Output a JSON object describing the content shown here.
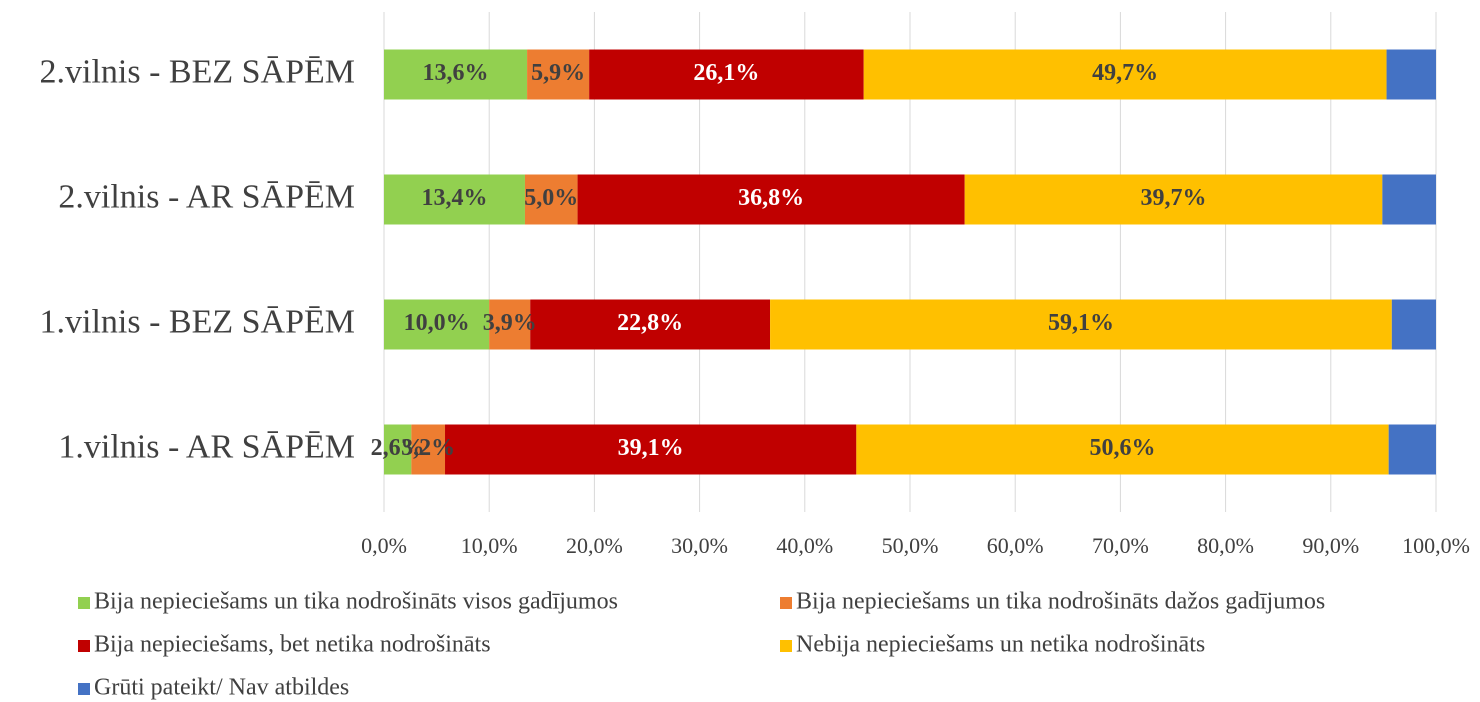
{
  "chart_data": {
    "type": "stacked-barh",
    "categories": [
      "2.vilnis - BEZ SĀPĒM",
      "2.vilnis - AR SĀPĒM",
      "1.vilnis - BEZ SĀPĒM",
      "1.vilnis - AR SĀPĒM"
    ],
    "series": [
      {
        "name": "Bija nepieciešams un tika nodrošināts visos gadījumos",
        "color": "#92d050",
        "values": [
          13.6,
          13.4,
          10.0,
          2.6
        ],
        "value_labels": [
          "13,6%",
          "13,4%",
          "10,0%",
          "2,6%"
        ]
      },
      {
        "name": "Bija nepieciešams un tika nodrošināts dažos gadījumos",
        "color": "#ed7d31",
        "values": [
          5.9,
          5.0,
          3.9,
          3.2
        ],
        "value_labels": [
          "5,9%",
          "5,0%",
          "3,9%",
          "3,2%"
        ]
      },
      {
        "name": "Bija nepieciešams, bet netika nodrošināts",
        "color": "#c00000",
        "values": [
          26.1,
          36.8,
          22.8,
          39.1
        ],
        "value_labels": [
          "26,1%",
          "36,8%",
          "22,8%",
          "39,1%"
        ]
      },
      {
        "name": "Nebija nepieciešams un netika nodrošināts",
        "color": "#ffc000",
        "values": [
          49.7,
          39.7,
          59.1,
          50.6
        ],
        "value_labels": [
          "49,7%",
          "39,7%",
          "59,1%",
          "50,6%"
        ]
      },
      {
        "name": "Grūti pateikt/ Nav atbildes",
        "color": "#4472c4",
        "values": [
          4.7,
          5.1,
          4.2,
          4.5
        ]
      }
    ],
    "xlim": [
      0,
      100
    ],
    "xticks": [
      {
        "value": 0,
        "label": "0,0%"
      },
      {
        "value": 10,
        "label": "10,0%"
      },
      {
        "value": 20,
        "label": "20,0%"
      },
      {
        "value": 30,
        "label": "30,0%"
      },
      {
        "value": 40,
        "label": "40,0%"
      },
      {
        "value": 50,
        "label": "50,0%"
      },
      {
        "value": 60,
        "label": "60,0%"
      },
      {
        "value": 70,
        "label": "70,0%"
      },
      {
        "value": 80,
        "label": "80,0%"
      },
      {
        "value": 90,
        "label": "90,0%"
      },
      {
        "value": 100,
        "label": "100,0%"
      }
    ],
    "grid": true
  }
}
